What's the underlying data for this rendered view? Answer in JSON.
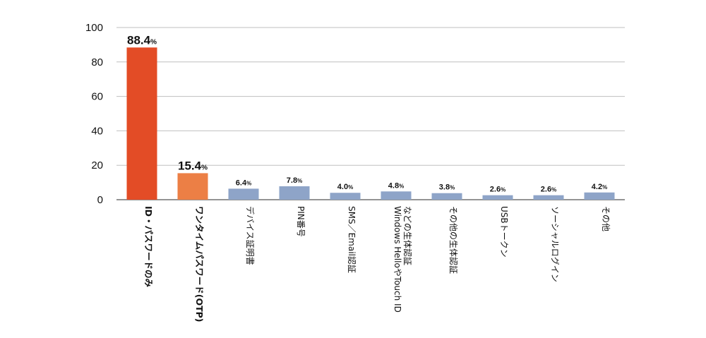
{
  "chart_data": {
    "type": "bar",
    "title": "",
    "xlabel": "",
    "ylabel": "",
    "ylim": [
      0,
      100
    ],
    "yticks": [
      0,
      20,
      40,
      60,
      80,
      100
    ],
    "grid": true,
    "unit": "%",
    "categories": [
      "ID・パスワードのみ",
      "ワンタイムパスワード(OTP)",
      "デバイス証明書",
      "PIN番号",
      "SMS／Email認証",
      "Windows HelloやTouch IDなどの生体認証",
      "その他の生体認証",
      "USBトークン",
      "ソーシャルログイン",
      "その他"
    ],
    "category_lines": [
      [
        "ID・パスワードのみ"
      ],
      [
        "ワンタイムパスワード(OTP)"
      ],
      [
        "デバイス証明書"
      ],
      [
        "PIN番号"
      ],
      [
        "SMS／Email認証"
      ],
      [
        "Windows HelloやTouch ID",
        "などの生体認証"
      ],
      [
        "その他の生体認証"
      ],
      [
        "USBトークン"
      ],
      [
        "ソーシャルログイン"
      ],
      [
        "その他"
      ]
    ],
    "values": [
      88.4,
      15.4,
      6.4,
      7.8,
      4.0,
      4.8,
      3.8,
      2.6,
      2.6,
      4.2
    ],
    "value_labels": [
      "88.4",
      "15.4",
      "6.4",
      "7.8",
      "4.0",
      "4.8",
      "3.8",
      "2.6",
      "2.6",
      "4.2"
    ],
    "colors": [
      "#e34c26",
      "#ec7f45",
      "#8ea4c8",
      "#8ea4c8",
      "#8ea4c8",
      "#8ea4c8",
      "#8ea4c8",
      "#8ea4c8",
      "#8ea4c8",
      "#8ea4c8"
    ],
    "grid_color": "#bfbfbf"
  }
}
